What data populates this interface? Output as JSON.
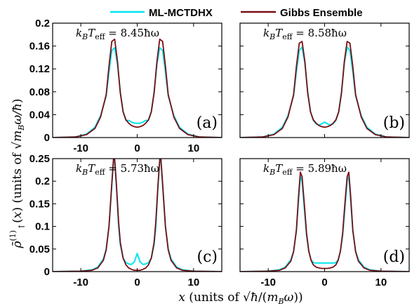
{
  "legend": [
    {
      "label": "ML-MCTDHX",
      "color": "#00e5ee"
    },
    {
      "label": "Gibbs Ensemble",
      "color": "#7a0f14"
    }
  ],
  "xlabel": "x (units of √ħ/(m_Bω))",
  "ylabel": "ρ̄↑⁽¹⁾(x) (units of √m_Bω/ħ)",
  "chart_data": [
    {
      "type": "line",
      "panel": "(a)",
      "temperature_label": "kBTeff = 8.45ħω",
      "xlim": [
        -15,
        15
      ],
      "ylim": [
        0,
        0.2
      ],
      "xticks": [
        -10,
        0,
        10
      ],
      "xtick_labels": [
        "-10",
        "0",
        "10"
      ],
      "yticks": [
        0,
        0.04,
        0.08,
        0.12,
        0.16,
        0.2
      ],
      "ytick_labels": [
        "0",
        "0.04",
        "0.08",
        "0.12",
        "0.16",
        "0.2"
      ],
      "series": [
        {
          "name": "ML-MCTDHX",
          "x": [
            -15,
            -11,
            -9,
            -7.5,
            -6.5,
            -5.5,
            -5,
            -4.5,
            -4,
            -3.5,
            -3,
            -2.5,
            -2,
            -1.5,
            -1,
            -0.5,
            0,
            0.5,
            1,
            1.5,
            2,
            2.5,
            3,
            3.5,
            4,
            4.5,
            5,
            5.5,
            6.5,
            7.5,
            9,
            11,
            15
          ],
          "y": [
            0,
            0.001,
            0.006,
            0.018,
            0.038,
            0.073,
            0.115,
            0.152,
            0.157,
            0.128,
            0.08,
            0.045,
            0.03,
            0.03,
            0.027,
            0.025,
            0.025,
            0.025,
            0.027,
            0.03,
            0.03,
            0.045,
            0.08,
            0.128,
            0.157,
            0.152,
            0.115,
            0.073,
            0.038,
            0.018,
            0.006,
            0.001,
            0
          ]
        },
        {
          "name": "Gibbs Ensemble",
          "x": [
            -15,
            -11,
            -9,
            -7.5,
            -6.5,
            -5.5,
            -5,
            -4.5,
            -4,
            -3.5,
            -3,
            -2.5,
            -2,
            -1.5,
            -1,
            -0.5,
            0,
            0.5,
            1,
            1.5,
            2,
            2.5,
            3,
            3.5,
            4,
            4.5,
            5,
            5.5,
            6.5,
            7.5,
            9,
            11,
            15
          ],
          "y": [
            0,
            0.001,
            0.005,
            0.016,
            0.036,
            0.075,
            0.125,
            0.168,
            0.172,
            0.133,
            0.078,
            0.045,
            0.031,
            0.025,
            0.021,
            0.019,
            0.018,
            0.019,
            0.021,
            0.025,
            0.031,
            0.045,
            0.078,
            0.133,
            0.172,
            0.168,
            0.125,
            0.075,
            0.036,
            0.016,
            0.005,
            0.001,
            0
          ]
        }
      ]
    },
    {
      "type": "line",
      "panel": "(b)",
      "temperature_label": "kBTeff = 8.58ħω",
      "xlim": [
        -15,
        15
      ],
      "ylim": [
        0,
        0.2
      ],
      "xticks": [
        -10,
        0,
        10
      ],
      "xtick_labels": [],
      "yticks": [
        0,
        0.04,
        0.08,
        0.12,
        0.16,
        0.2
      ],
      "ytick_labels": [],
      "series": [
        {
          "name": "ML-MCTDHX",
          "x": [
            -15,
            -11,
            -9,
            -7.5,
            -6.5,
            -5.5,
            -5,
            -4.5,
            -4,
            -3.5,
            -3,
            -2.5,
            -2,
            -1.5,
            -1,
            -0.5,
            0,
            0.5,
            1,
            1.5,
            2,
            2.5,
            3,
            3.5,
            4,
            4.5,
            5,
            5.5,
            6.5,
            7.5,
            9,
            11,
            15
          ],
          "y": [
            0,
            0.001,
            0.006,
            0.018,
            0.038,
            0.073,
            0.115,
            0.152,
            0.158,
            0.13,
            0.08,
            0.045,
            0.03,
            0.024,
            0.022,
            0.024,
            0.027,
            0.024,
            0.022,
            0.024,
            0.03,
            0.045,
            0.08,
            0.13,
            0.158,
            0.152,
            0.115,
            0.073,
            0.038,
            0.018,
            0.006,
            0.001,
            0
          ]
        },
        {
          "name": "Gibbs Ensemble",
          "x": [
            -15,
            -11,
            -9,
            -7.5,
            -6.5,
            -5.5,
            -5,
            -4.5,
            -4,
            -3.5,
            -3,
            -2.5,
            -2,
            -1.5,
            -1,
            -0.5,
            0,
            0.5,
            1,
            1.5,
            2,
            2.5,
            3,
            3.5,
            4,
            4.5,
            5,
            5.5,
            6.5,
            7.5,
            9,
            11,
            15
          ],
          "y": [
            0,
            0.001,
            0.005,
            0.016,
            0.036,
            0.075,
            0.124,
            0.165,
            0.168,
            0.133,
            0.078,
            0.045,
            0.031,
            0.025,
            0.021,
            0.019,
            0.018,
            0.019,
            0.021,
            0.025,
            0.031,
            0.045,
            0.078,
            0.133,
            0.168,
            0.165,
            0.124,
            0.075,
            0.036,
            0.016,
            0.005,
            0.001,
            0
          ]
        }
      ]
    },
    {
      "type": "line",
      "panel": "(c)",
      "temperature_label": "kBTeff = 5.73ħω",
      "xlim": [
        -15,
        15
      ],
      "ylim": [
        0,
        0.25
      ],
      "xticks": [
        -10,
        0,
        10
      ],
      "xtick_labels": [
        "-10",
        "0",
        "10"
      ],
      "yticks": [
        0,
        0.05,
        0.1,
        0.15,
        0.2,
        0.25
      ],
      "ytick_labels": [
        "0",
        "0.05",
        "0.1",
        "0.15",
        "0.2",
        "0.25"
      ],
      "series": [
        {
          "name": "ML-MCTDHX",
          "x": [
            -15,
            -10,
            -8,
            -7,
            -6,
            -5.5,
            -5,
            -4.5,
            -4.2,
            -4,
            -3.7,
            -3.3,
            -3,
            -2.5,
            -2,
            -1.5,
            -1,
            -0.5,
            0,
            0.5,
            1,
            1.5,
            2,
            2.5,
            3,
            3.3,
            3.7,
            4,
            4.2,
            4.5,
            5,
            5.5,
            6,
            7,
            8,
            10,
            15
          ],
          "y": [
            0,
            0.001,
            0.004,
            0.01,
            0.028,
            0.05,
            0.1,
            0.19,
            0.25,
            0.245,
            0.19,
            0.1,
            0.06,
            0.03,
            0.02,
            0.017,
            0.016,
            0.022,
            0.04,
            0.022,
            0.016,
            0.017,
            0.02,
            0.03,
            0.06,
            0.1,
            0.19,
            0.245,
            0.25,
            0.19,
            0.1,
            0.05,
            0.028,
            0.01,
            0.004,
            0.001,
            0
          ]
        },
        {
          "name": "Gibbs Ensemble",
          "x": [
            -15,
            -10,
            -8,
            -7,
            -6,
            -5.5,
            -5,
            -4.5,
            -4.2,
            -4,
            -3.7,
            -3.3,
            -3,
            -2.5,
            -2,
            -1.5,
            -1,
            -0.5,
            0,
            0.5,
            1,
            1.5,
            2,
            2.5,
            3,
            3.3,
            3.7,
            4,
            4.2,
            4.5,
            5,
            5.5,
            6,
            7,
            8,
            10,
            15
          ],
          "y": [
            0,
            0.001,
            0.003,
            0.008,
            0.025,
            0.048,
            0.1,
            0.195,
            0.25,
            0.248,
            0.195,
            0.11,
            0.065,
            0.03,
            0.015,
            0.008,
            0.005,
            0.003,
            0.003,
            0.003,
            0.005,
            0.008,
            0.015,
            0.03,
            0.065,
            0.11,
            0.195,
            0.248,
            0.25,
            0.195,
            0.1,
            0.048,
            0.025,
            0.008,
            0.003,
            0.001,
            0
          ]
        }
      ]
    },
    {
      "type": "line",
      "panel": "(d)",
      "temperature_label": "kBTeff = 5.89ħω",
      "xlim": [
        -15,
        15
      ],
      "ylim": [
        0,
        0.25
      ],
      "xticks": [
        -10,
        0,
        10
      ],
      "xtick_labels": [
        "-10",
        "0",
        "10"
      ],
      "yticks": [
        0,
        0.05,
        0.1,
        0.15,
        0.2,
        0.25
      ],
      "ytick_labels": [],
      "series": [
        {
          "name": "ML-MCTDHX",
          "x": [
            -15,
            -10,
            -8,
            -7,
            -6,
            -5.5,
            -5,
            -4.6,
            -4.3,
            -4,
            -3.6,
            -3.2,
            -2.8,
            -2.4,
            -2,
            -1.5,
            -1,
            -0.5,
            0,
            0.5,
            1,
            1.5,
            2,
            2.4,
            2.8,
            3.2,
            3.6,
            4,
            4.3,
            4.6,
            5,
            5.5,
            6,
            7,
            8,
            10,
            15
          ],
          "y": [
            0,
            0.001,
            0.004,
            0.01,
            0.026,
            0.045,
            0.09,
            0.16,
            0.21,
            0.2,
            0.14,
            0.08,
            0.045,
            0.026,
            0.02,
            0.019,
            0.019,
            0.019,
            0.019,
            0.019,
            0.019,
            0.019,
            0.02,
            0.026,
            0.045,
            0.08,
            0.14,
            0.2,
            0.21,
            0.16,
            0.09,
            0.045,
            0.026,
            0.01,
            0.004,
            0.001,
            0
          ]
        },
        {
          "name": "Gibbs Ensemble",
          "x": [
            -15,
            -10,
            -8,
            -7,
            -6,
            -5.5,
            -5,
            -4.6,
            -4.3,
            -4,
            -3.6,
            -3.2,
            -2.8,
            -2.4,
            -2,
            -1.5,
            -1,
            -0.5,
            0,
            0.5,
            1,
            1.5,
            2,
            2.4,
            2.8,
            3.2,
            3.6,
            4,
            4.3,
            4.6,
            5,
            5.5,
            6,
            7,
            8,
            10,
            15
          ],
          "y": [
            0,
            0.001,
            0.003,
            0.008,
            0.023,
            0.044,
            0.092,
            0.17,
            0.22,
            0.21,
            0.15,
            0.085,
            0.045,
            0.025,
            0.015,
            0.01,
            0.008,
            0.007,
            0.007,
            0.007,
            0.008,
            0.01,
            0.015,
            0.025,
            0.045,
            0.085,
            0.15,
            0.21,
            0.22,
            0.17,
            0.092,
            0.044,
            0.023,
            0.008,
            0.003,
            0.001,
            0
          ]
        }
      ]
    }
  ]
}
